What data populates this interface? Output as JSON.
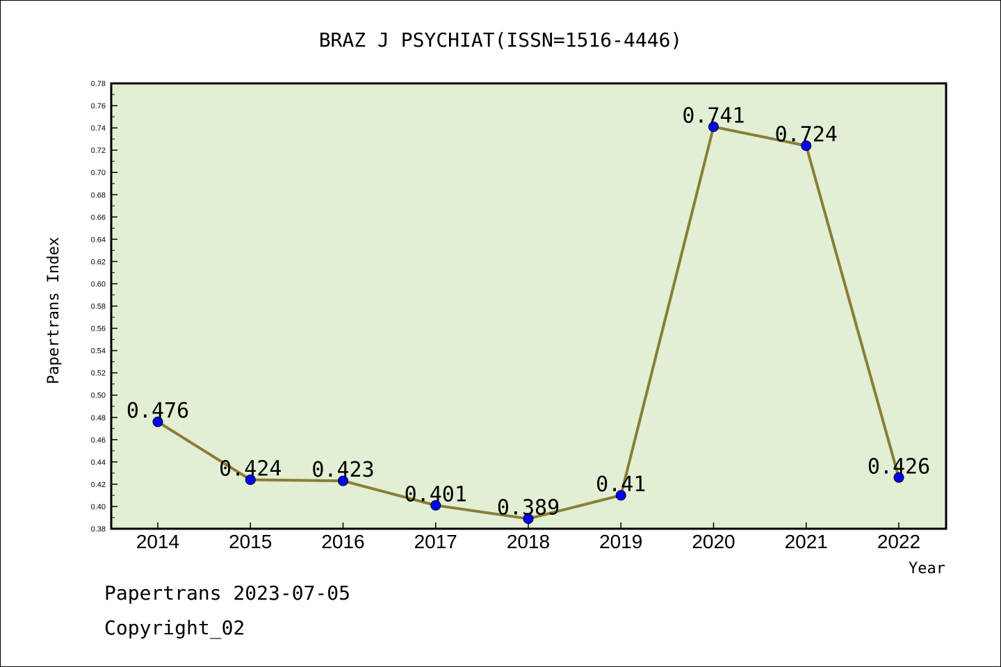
{
  "chart_data": {
    "type": "line",
    "title": "BRAZ J PSYCHIAT(ISSN=1516-4446)",
    "xlabel": "Year",
    "ylabel": "Papertrans Index",
    "categories": [
      "2014",
      "2015",
      "2016",
      "2017",
      "2018",
      "2019",
      "2020",
      "2021",
      "2022"
    ],
    "series": [
      {
        "values": [
          0.476,
          0.424,
          0.423,
          0.401,
          0.389,
          0.41,
          0.741,
          0.724,
          0.426
        ],
        "labels": [
          "0.476",
          "0.424",
          "0.423",
          "0.401",
          "0.389",
          "0.41",
          "0.741",
          "0.724",
          "0.426"
        ]
      }
    ],
    "ylim": [
      0.38,
      0.78
    ],
    "yticks": [
      "0.38",
      "0.40",
      "0.42",
      "0.44",
      "0.46",
      "0.48",
      "0.50",
      "0.52",
      "0.54",
      "0.56",
      "0.58",
      "0.60",
      "0.62",
      "0.64",
      "0.66",
      "0.68",
      "0.70",
      "0.72",
      "0.74",
      "0.76",
      "0.78"
    ],
    "grid": false,
    "colors": {
      "plot_background": "#e2efd5",
      "line": "#8b7d37",
      "marker": "#0000ff"
    }
  },
  "footer": {
    "line1": "Papertrans 2023-07-05",
    "line2": "Copyright_02"
  }
}
